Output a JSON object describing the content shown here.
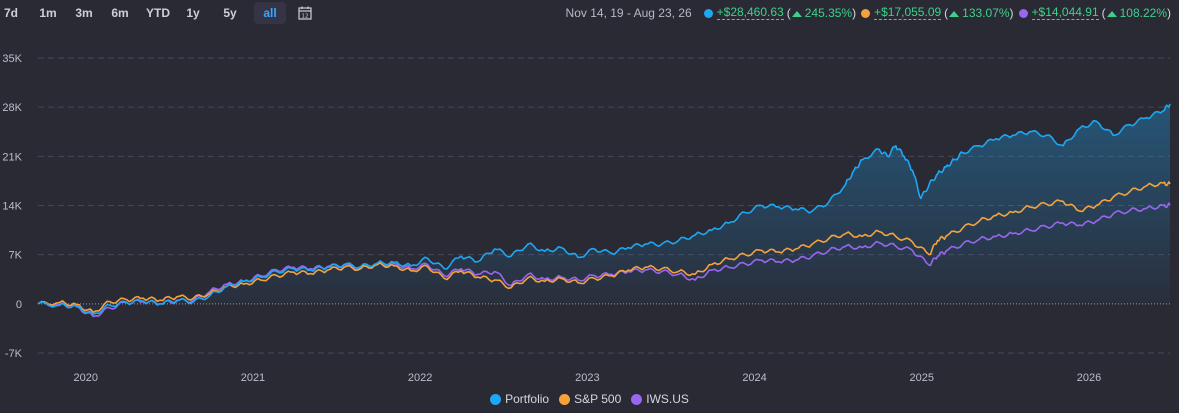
{
  "toolbar": {
    "ranges": [
      "7d",
      "1m",
      "3m",
      "6m",
      "YTD",
      "1y",
      "5y",
      "all"
    ],
    "active_range": "all",
    "calendar_icon": "calendar-icon"
  },
  "summary": {
    "period": "Nov 14, 19 - Aug 23, 26",
    "items": [
      {
        "gain": "+$28,460.63",
        "pct": "245.35%",
        "color": "#1ea7f2"
      },
      {
        "gain": "+$17,055.09",
        "pct": "133.07%",
        "color": "#f5a23d"
      },
      {
        "gain": "+$14,044.91",
        "pct": "108.22%",
        "color": "#9966ee"
      }
    ],
    "arrow_icon": "triangle-up-icon"
  },
  "chart_data": {
    "type": "line",
    "title": "",
    "xlabel": "",
    "ylabel": "",
    "ylim": [
      -7000,
      35000
    ],
    "y_ticks": [
      "35K",
      "28K",
      "21K",
      "14K",
      "7K",
      "0",
      "-7K"
    ],
    "y_tick_values": [
      35000,
      28000,
      21000,
      14000,
      7000,
      0,
      -7000
    ],
    "x_ticks": [
      "2020",
      "2021",
      "2022",
      "2023",
      "2024",
      "2025",
      "2026"
    ],
    "x_tick_values": [
      2020,
      2021,
      2022,
      2023,
      2024,
      2025,
      2026
    ],
    "xlim": [
      2019.87,
      2026.64
    ],
    "grid": true,
    "legend_position": "bottom-center",
    "series": [
      {
        "name": "Portfolio",
        "color": "#1ea7f2",
        "area": true,
        "x": [
          2019.87,
          2020.0,
          2020.1,
          2020.2,
          2020.3,
          2020.4,
          2020.5,
          2020.6,
          2020.7,
          2020.8,
          2020.9,
          2021.0,
          2021.1,
          2021.2,
          2021.3,
          2021.4,
          2021.5,
          2021.6,
          2021.7,
          2021.8,
          2021.9,
          2022.0,
          2022.1,
          2022.2,
          2022.3,
          2022.4,
          2022.5,
          2022.6,
          2022.7,
          2022.8,
          2022.9,
          2023.0,
          2023.1,
          2023.2,
          2023.3,
          2023.4,
          2023.5,
          2023.6,
          2023.7,
          2023.8,
          2023.9,
          2024.0,
          2024.1,
          2024.2,
          2024.3,
          2024.4,
          2024.5,
          2024.6,
          2024.7,
          2024.75,
          2024.8,
          2024.9,
          2024.95,
          2025.0,
          2025.05,
          2025.1,
          2025.15,
          2025.2,
          2025.25,
          2025.3,
          2025.35,
          2025.4,
          2025.5,
          2025.6,
          2025.7,
          2025.8,
          2025.9,
          2026.0,
          2026.1,
          2026.2,
          2026.3,
          2026.4,
          2026.5,
          2026.6,
          2026.64
        ],
        "y": [
          0,
          -200,
          -300,
          -1500,
          -200,
          200,
          400,
          0,
          500,
          300,
          1200,
          2500,
          3200,
          3800,
          4600,
          5000,
          4800,
          5200,
          5600,
          5300,
          5800,
          5900,
          5400,
          6500,
          5000,
          6800,
          6000,
          7800,
          6800,
          8500,
          7500,
          8000,
          6600,
          7800,
          7200,
          8000,
          8500,
          8500,
          9000,
          9800,
          10500,
          11500,
          13000,
          14000,
          13800,
          13500,
          13200,
          14500,
          17000,
          19000,
          20500,
          22000,
          21000,
          22500,
          21000,
          19000,
          15000,
          17000,
          18500,
          19500,
          20500,
          21500,
          22500,
          23500,
          24000,
          24500,
          24000,
          22500,
          25000,
          26000,
          24000,
          25500,
          26500,
          27500,
          28460
        ]
      },
      {
        "name": "S&P 500",
        "color": "#f5a23d",
        "x": [
          2019.87,
          2020.0,
          2020.1,
          2020.2,
          2020.3,
          2020.4,
          2020.5,
          2020.6,
          2020.7,
          2020.8,
          2020.9,
          2021.0,
          2021.1,
          2021.2,
          2021.3,
          2021.4,
          2021.5,
          2021.6,
          2021.7,
          2021.8,
          2021.9,
          2022.0,
          2022.1,
          2022.2,
          2022.3,
          2022.4,
          2022.5,
          2022.6,
          2022.7,
          2022.8,
          2022.9,
          2023.0,
          2023.1,
          2023.2,
          2023.3,
          2023.4,
          2023.5,
          2023.6,
          2023.7,
          2023.8,
          2023.9,
          2024.0,
          2024.1,
          2024.2,
          2024.3,
          2024.4,
          2024.5,
          2024.6,
          2024.7,
          2024.8,
          2024.9,
          2025.0,
          2025.1,
          2025.2,
          2025.25,
          2025.3,
          2025.4,
          2025.5,
          2025.6,
          2025.7,
          2025.8,
          2025.9,
          2026.0,
          2026.1,
          2026.2,
          2026.3,
          2026.4,
          2026.5,
          2026.6,
          2026.64
        ],
        "y": [
          0,
          200,
          -100,
          -1200,
          300,
          600,
          800,
          500,
          1000,
          800,
          1500,
          2500,
          2800,
          3400,
          4000,
          4500,
          4300,
          4800,
          5200,
          5000,
          5600,
          5400,
          4700,
          5300,
          3600,
          4700,
          3800,
          3400,
          2300,
          3700,
          3200,
          3600,
          3000,
          3600,
          4000,
          4800,
          5200,
          5000,
          4600,
          4200,
          5600,
          6400,
          7000,
          7600,
          7400,
          7800,
          8500,
          9300,
          10000,
          9600,
          10300,
          9600,
          8800,
          7000,
          9000,
          9600,
          10800,
          11800,
          12600,
          13000,
          13800,
          14200,
          14600,
          13200,
          14000,
          15200,
          16000,
          16800,
          17200,
          17055
        ]
      },
      {
        "name": "IWS.US",
        "color": "#9966ee",
        "x": [
          2019.87,
          2020.0,
          2020.1,
          2020.2,
          2020.3,
          2020.4,
          2020.5,
          2020.6,
          2020.7,
          2020.8,
          2020.9,
          2021.0,
          2021.1,
          2021.2,
          2021.3,
          2021.4,
          2021.5,
          2021.6,
          2021.7,
          2021.8,
          2021.9,
          2022.0,
          2022.1,
          2022.2,
          2022.3,
          2022.4,
          2022.5,
          2022.6,
          2022.7,
          2022.8,
          2022.9,
          2023.0,
          2023.1,
          2023.2,
          2023.3,
          2023.4,
          2023.5,
          2023.6,
          2023.7,
          2023.8,
          2023.9,
          2024.0,
          2024.1,
          2024.2,
          2024.3,
          2024.4,
          2024.5,
          2024.6,
          2024.7,
          2024.8,
          2024.9,
          2025.0,
          2025.1,
          2025.2,
          2025.25,
          2025.3,
          2025.4,
          2025.5,
          2025.6,
          2025.7,
          2025.8,
          2025.9,
          2026.0,
          2026.1,
          2026.2,
          2026.3,
          2026.4,
          2026.5,
          2026.6,
          2026.64
        ],
        "y": [
          0,
          -100,
          -400,
          -1800,
          -600,
          200,
          300,
          0,
          400,
          500,
          1800,
          2800,
          3200,
          4000,
          4800,
          5200,
          5000,
          5300,
          5500,
          5000,
          5600,
          5700,
          5000,
          5600,
          4000,
          5000,
          4200,
          4600,
          2600,
          4200,
          3500,
          3800,
          3400,
          4000,
          4200,
          4600,
          4800,
          4600,
          4200,
          3400,
          4800,
          5200,
          5700,
          6200,
          6000,
          6200,
          6800,
          7600,
          8200,
          8000,
          8700,
          8200,
          7600,
          5500,
          6800,
          7500,
          8500,
          9200,
          9600,
          10000,
          10500,
          11000,
          11500,
          11200,
          11800,
          12800,
          13300,
          13600,
          14000,
          14045
        ]
      }
    ]
  }
}
